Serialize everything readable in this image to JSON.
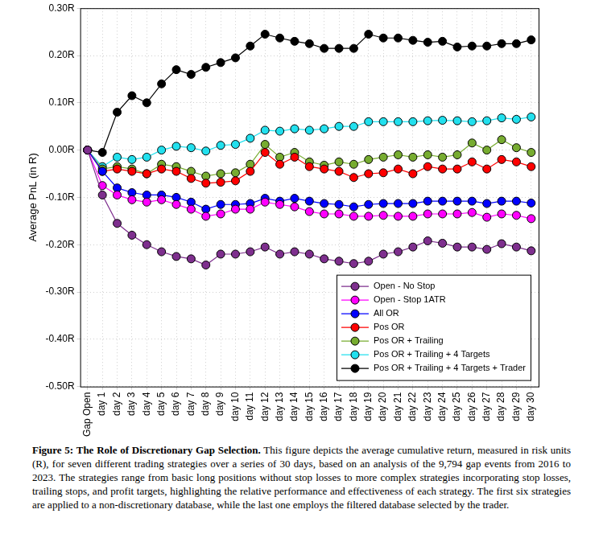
{
  "chart_data": {
    "type": "line",
    "title": "Figure 5: The Role of Discretionary Gap Selection.",
    "subtitle": "This figure depicts the average cumulative return, measured in risk units (R), for seven different trading strategies over a series of 30 days, based on an analysis of the 9,794 gap events from 2016 to 2023. The strategies range from basic long positions without stop losses to more complex strategies incorporating stop losses, trailing stops, and profit targets, highlighting the relative performance and effectiveness of each strategy. The first six strategies are applied to a non-discretionary database, while the last one employs the filtered database selected by the trader.",
    "y_label": "Average PnL (in R)",
    "categories": [
      "Gap Open",
      "day 1",
      "day 2",
      "day 3",
      "day 4",
      "day 5",
      "day 6",
      "day 7",
      "day 8",
      "day 9",
      "day 10",
      "day 11",
      "day 12",
      "day 13",
      "day 14",
      "day 15",
      "day 16",
      "day 17",
      "day 18",
      "day 19",
      "day 20",
      "day 21",
      "day 22",
      "day 23",
      "day 24",
      "day 25",
      "day 26",
      "day 27",
      "day 28",
      "day 29",
      "day 30"
    ],
    "series": [
      {
        "name": "Open - No Stop",
        "color": "#7e2f8e",
        "marker": "circle",
        "line_style": "solid",
        "values": [
          0,
          -0.095,
          -0.155,
          -0.18,
          -0.2,
          -0.215,
          -0.225,
          -0.23,
          -0.243,
          -0.22,
          -0.22,
          -0.215,
          -0.205,
          -0.22,
          -0.215,
          -0.22,
          -0.23,
          -0.235,
          -0.24,
          -0.235,
          -0.22,
          -0.215,
          -0.205,
          -0.192,
          -0.197,
          -0.205,
          -0.205,
          -0.21,
          -0.198,
          -0.205,
          -0.213
        ]
      },
      {
        "name": "Open - Stop 1ATR",
        "color": "#ff00ff",
        "marker": "circle",
        "line_style": "solid",
        "values": [
          0,
          -0.075,
          -0.095,
          -0.105,
          -0.11,
          -0.105,
          -0.115,
          -0.125,
          -0.14,
          -0.135,
          -0.125,
          -0.125,
          -0.11,
          -0.115,
          -0.12,
          -0.13,
          -0.135,
          -0.135,
          -0.14,
          -0.14,
          -0.138,
          -0.14,
          -0.14,
          -0.135,
          -0.135,
          -0.135,
          -0.132,
          -0.142,
          -0.135,
          -0.138,
          -0.145
        ]
      },
      {
        "name": "All OR",
        "color": "#0000ff",
        "marker": "circle",
        "line_style": "solid",
        "values": [
          0,
          -0.045,
          -0.08,
          -0.09,
          -0.095,
          -0.095,
          -0.1,
          -0.11,
          -0.125,
          -0.115,
          -0.115,
          -0.113,
          -0.102,
          -0.108,
          -0.102,
          -0.108,
          -0.113,
          -0.115,
          -0.12,
          -0.115,
          -0.113,
          -0.113,
          -0.113,
          -0.108,
          -0.108,
          -0.108,
          -0.108,
          -0.113,
          -0.108,
          -0.108,
          -0.112
        ]
      },
      {
        "name": "Pos OR",
        "color": "#ff0000",
        "marker": "circle",
        "line_style": "solid",
        "values": [
          0,
          -0.045,
          -0.04,
          -0.045,
          -0.05,
          -0.04,
          -0.045,
          -0.06,
          -0.07,
          -0.068,
          -0.065,
          -0.045,
          -0.005,
          -0.03,
          -0.015,
          -0.035,
          -0.04,
          -0.045,
          -0.058,
          -0.05,
          -0.048,
          -0.04,
          -0.05,
          -0.035,
          -0.04,
          -0.04,
          -0.025,
          -0.04,
          -0.02,
          -0.025,
          -0.035
        ]
      },
      {
        "name": "Pos OR + Trailing",
        "color": "#77ac30",
        "marker": "circle",
        "line_style": "solid",
        "values": [
          0,
          -0.04,
          -0.035,
          -0.04,
          -0.05,
          -0.03,
          -0.035,
          -0.045,
          -0.055,
          -0.05,
          -0.048,
          -0.03,
          0.012,
          -0.015,
          -0.005,
          -0.025,
          -0.032,
          -0.025,
          -0.03,
          -0.02,
          -0.015,
          -0.01,
          -0.015,
          -0.01,
          -0.015,
          -0.01,
          0.015,
          0.0,
          0.022,
          0.005,
          -0.005
        ]
      },
      {
        "name": "Pos OR + Trailing + 4 Targets",
        "color": "#22e0ee",
        "marker": "circle",
        "line_style": "solid",
        "values": [
          0,
          -0.035,
          -0.015,
          -0.02,
          -0.015,
          0.0,
          0.008,
          0.005,
          -0.002,
          0.01,
          0.012,
          0.025,
          0.042,
          0.04,
          0.045,
          0.042,
          0.045,
          0.05,
          0.05,
          0.06,
          0.06,
          0.06,
          0.06,
          0.062,
          0.063,
          0.062,
          0.06,
          0.062,
          0.068,
          0.065,
          0.07
        ]
      },
      {
        "name": "Pos OR + Trailing + 4 Targets + Trader",
        "color": "#000000",
        "marker": "circle",
        "line_style": "solid",
        "values": [
          0,
          -0.005,
          0.08,
          0.115,
          0.1,
          0.14,
          0.17,
          0.16,
          0.175,
          0.185,
          0.195,
          0.22,
          0.245,
          0.237,
          0.23,
          0.225,
          0.215,
          0.215,
          0.215,
          0.245,
          0.237,
          0.237,
          0.232,
          0.228,
          0.23,
          0.218,
          0.22,
          0.22,
          0.225,
          0.225,
          0.233
        ]
      }
    ],
    "ylim": [
      -0.5,
      0.3
    ],
    "yticks": [
      {
        "value": -0.5,
        "label": "-0.50R"
      },
      {
        "value": -0.4,
        "label": "-0.40R"
      },
      {
        "value": -0.3,
        "label": "-0.30R"
      },
      {
        "value": -0.2,
        "label": "-0.20R"
      },
      {
        "value": -0.1,
        "label": "-0.10R"
      },
      {
        "value": 0,
        "label": "0.00R"
      },
      {
        "value": 0.1,
        "label": "0.10R"
      },
      {
        "value": 0.2,
        "label": "0.20R"
      },
      {
        "value": 0.3,
        "label": "0.30R"
      }
    ],
    "grid": true,
    "legend": "lower right"
  }
}
